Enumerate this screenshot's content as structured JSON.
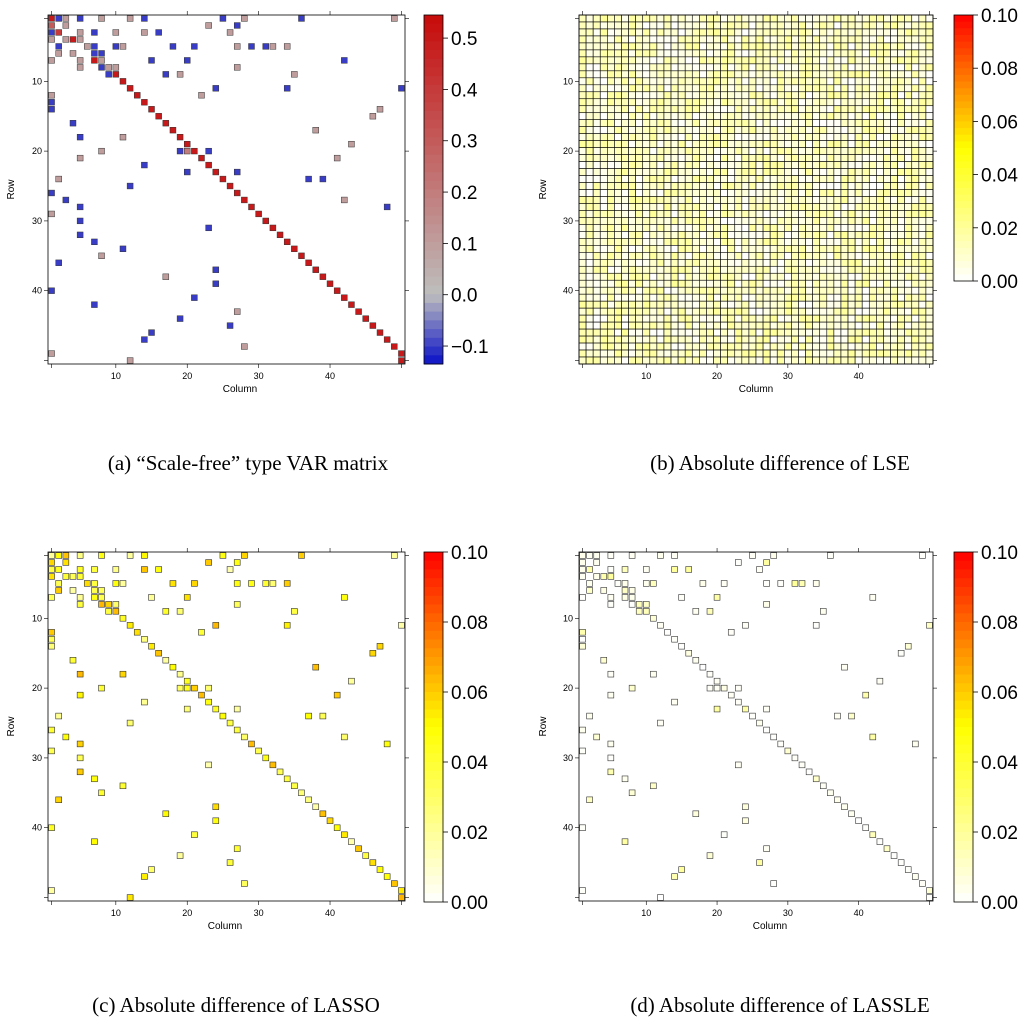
{
  "figure": {
    "panels": [
      {
        "id": "a",
        "caption": "(a) “Scale-free” type VAR matrix",
        "colorbar": {
          "type": "diverging",
          "ticks": [
            "0.5",
            "0.4",
            "0.3",
            "0.2",
            "0.1",
            "0.0",
            "−0.1"
          ],
          "tick_values": [
            0.5,
            0.4,
            0.3,
            0.2,
            0.1,
            0.0,
            -0.1
          ],
          "range": [
            -0.135,
            0.545
          ],
          "colors": {
            "negative": "#0a10c8",
            "zero": "#bebebe",
            "positive": "#c80a0a"
          }
        }
      },
      {
        "id": "b",
        "caption": "(b) Absolute difference of LSE",
        "colorbar": {
          "type": "heat",
          "ticks": [
            "0.10",
            "0.08",
            "0.06",
            "0.04",
            "0.02",
            "0.00"
          ],
          "tick_values": [
            0.1,
            0.08,
            0.06,
            0.04,
            0.02,
            0.0
          ],
          "range": [
            0,
            0.1
          ],
          "colors": {
            "low": "#ffffff",
            "mid": "#ffff00",
            "high": "#ff0000"
          }
        }
      },
      {
        "id": "c",
        "caption": "(c) Absolute difference of LASSO",
        "colorbar": {
          "type": "heat",
          "ticks": [
            "0.10",
            "0.08",
            "0.06",
            "0.04",
            "0.02",
            "0.00"
          ],
          "tick_values": [
            0.1,
            0.08,
            0.06,
            0.04,
            0.02,
            0.0
          ],
          "range": [
            0,
            0.1
          ],
          "colors": {
            "low": "#ffffff",
            "mid": "#ffff00",
            "high": "#ff0000"
          }
        }
      },
      {
        "id": "d",
        "caption": "(d) Absolute difference of LASSLE",
        "colorbar": {
          "type": "heat",
          "ticks": [
            "0.10",
            "0.08",
            "0.06",
            "0.04",
            "0.02",
            "0.00"
          ],
          "tick_values": [
            0.1,
            0.08,
            0.06,
            0.04,
            0.02,
            0.0
          ],
          "range": [
            0,
            0.1
          ],
          "colors": {
            "low": "#ffffff",
            "mid": "#ffff00",
            "high": "#ff0000"
          }
        }
      }
    ],
    "axes": {
      "xlabel": "Column",
      "ylabel": "Row",
      "xticks": [
        "10",
        "20",
        "30",
        "40"
      ],
      "yticks": [
        "10",
        "20",
        "30",
        "40"
      ],
      "n": 50
    }
  },
  "chart_data": [
    {
      "type": "heatmap",
      "panel": "a",
      "title": "",
      "xlabel": "Column",
      "ylabel": "Row",
      "rows": 50,
      "cols": 50,
      "diagonal_value": 0.5,
      "cells": [
        [
          1,
          1,
          0.5
        ],
        [
          1,
          2,
          -0.1
        ],
        [
          1,
          3,
          0.1
        ],
        [
          1,
          5,
          -0.1
        ],
        [
          1,
          8,
          0.1
        ],
        [
          1,
          12,
          0.1
        ],
        [
          1,
          14,
          -0.1
        ],
        [
          1,
          25,
          -0.1
        ],
        [
          1,
          28,
          0.1
        ],
        [
          1,
          36,
          -0.1
        ],
        [
          1,
          49,
          0.1
        ],
        [
          2,
          1,
          0.3
        ],
        [
          2,
          3,
          0.1
        ],
        [
          2,
          23,
          0.1
        ],
        [
          2,
          27,
          -0.1
        ],
        [
          3,
          1,
          -0.1
        ],
        [
          3,
          2,
          0.4
        ],
        [
          3,
          5,
          0.1
        ],
        [
          3,
          7,
          -0.1
        ],
        [
          3,
          10,
          0.1
        ],
        [
          3,
          14,
          0.1
        ],
        [
          3,
          16,
          -0.1
        ],
        [
          3,
          26,
          0.1
        ],
        [
          4,
          1,
          0.1
        ],
        [
          4,
          3,
          0.1
        ],
        [
          4,
          4,
          0.5
        ],
        [
          4,
          5,
          0.1
        ],
        [
          5,
          2,
          -0.1
        ],
        [
          5,
          6,
          0.1
        ],
        [
          5,
          7,
          -0.1
        ],
        [
          5,
          10,
          -0.1
        ],
        [
          5,
          11,
          0.1
        ],
        [
          5,
          18,
          -0.1
        ],
        [
          5,
          21,
          -0.1
        ],
        [
          5,
          27,
          0.1
        ],
        [
          5,
          29,
          -0.1
        ],
        [
          5,
          31,
          -0.1
        ],
        [
          5,
          32,
          0.1
        ],
        [
          5,
          34,
          0.1
        ],
        [
          6,
          2,
          0.1
        ],
        [
          6,
          4,
          0.1
        ],
        [
          6,
          7,
          -0.1
        ],
        [
          6,
          8,
          -0.1
        ],
        [
          7,
          1,
          0.1
        ],
        [
          7,
          5,
          0.1
        ],
        [
          7,
          7,
          0.5
        ],
        [
          7,
          8,
          0.1
        ],
        [
          7,
          15,
          -0.1
        ],
        [
          7,
          20,
          -0.1
        ],
        [
          7,
          42,
          -0.1
        ],
        [
          8,
          5,
          0.1
        ],
        [
          8,
          8,
          -0.1
        ],
        [
          8,
          9,
          0.1
        ],
        [
          8,
          10,
          0.1
        ],
        [
          8,
          27,
          0.1
        ],
        [
          9,
          9,
          -0.1
        ],
        [
          9,
          10,
          0.5
        ],
        [
          9,
          17,
          -0.1
        ],
        [
          9,
          19,
          0.1
        ],
        [
          9,
          35,
          0.1
        ],
        [
          10,
          11,
          0.5
        ],
        [
          11,
          12,
          0.5
        ],
        [
          11,
          24,
          -0.1
        ],
        [
          11,
          34,
          -0.1
        ],
        [
          11,
          50,
          -0.1
        ],
        [
          12,
          1,
          0.1
        ],
        [
          12,
          13,
          0.5
        ],
        [
          12,
          22,
          0.1
        ],
        [
          13,
          1,
          -0.1
        ],
        [
          13,
          14,
          0.5
        ],
        [
          14,
          1,
          -0.1
        ],
        [
          14,
          15,
          0.5
        ],
        [
          14,
          47,
          0.1
        ],
        [
          15,
          16,
          0.5
        ],
        [
          15,
          46,
          0.1
        ],
        [
          16,
          4,
          -0.1
        ],
        [
          16,
          17,
          0.5
        ],
        [
          17,
          18,
          0.5
        ],
        [
          17,
          38,
          0.1
        ],
        [
          18,
          5,
          -0.1
        ],
        [
          18,
          11,
          0.1
        ],
        [
          18,
          19,
          0.5
        ],
        [
          19,
          20,
          0.5
        ],
        [
          19,
          43,
          0.1
        ],
        [
          20,
          8,
          0.1
        ],
        [
          20,
          19,
          -0.1
        ],
        [
          20,
          20,
          0.2
        ],
        [
          20,
          21,
          0.5
        ],
        [
          20,
          23,
          -0.1
        ],
        [
          21,
          5,
          0.1
        ],
        [
          21,
          22,
          0.5
        ],
        [
          21,
          41,
          0.1
        ],
        [
          22,
          14,
          -0.1
        ],
        [
          22,
          23,
          0.5
        ],
        [
          23,
          20,
          -0.1
        ],
        [
          23,
          24,
          0.5
        ],
        [
          23,
          27,
          -0.1
        ],
        [
          24,
          2,
          0.1
        ],
        [
          24,
          25,
          0.5
        ],
        [
          24,
          37,
          -0.1
        ],
        [
          24,
          39,
          -0.1
        ],
        [
          25,
          12,
          -0.1
        ],
        [
          25,
          26,
          0.5
        ],
        [
          26,
          1,
          -0.1
        ],
        [
          26,
          27,
          0.5
        ],
        [
          27,
          3,
          -0.1
        ],
        [
          27,
          28,
          0.5
        ],
        [
          27,
          42,
          0.1
        ],
        [
          28,
          5,
          -0.1
        ],
        [
          28,
          29,
          0.5
        ],
        [
          28,
          48,
          -0.1
        ],
        [
          29,
          1,
          0.1
        ],
        [
          29,
          30,
          0.5
        ],
        [
          30,
          5,
          -0.1
        ],
        [
          30,
          31,
          0.5
        ],
        [
          31,
          23,
          -0.1
        ],
        [
          31,
          32,
          0.5
        ],
        [
          32,
          5,
          -0.1
        ],
        [
          32,
          33,
          0.5
        ],
        [
          33,
          7,
          -0.1
        ],
        [
          33,
          34,
          0.5
        ],
        [
          34,
          11,
          -0.1
        ],
        [
          34,
          35,
          0.5
        ],
        [
          35,
          8,
          0.1
        ],
        [
          35,
          36,
          0.5
        ],
        [
          36,
          2,
          -0.1
        ],
        [
          36,
          37,
          0.5
        ],
        [
          37,
          24,
          -0.1
        ],
        [
          37,
          38,
          0.5
        ],
        [
          38,
          17,
          0.1
        ],
        [
          38,
          39,
          0.5
        ],
        [
          39,
          24,
          -0.1
        ],
        [
          39,
          40,
          0.5
        ],
        [
          40,
          1,
          -0.1
        ],
        [
          40,
          41,
          0.5
        ],
        [
          41,
          21,
          -0.1
        ],
        [
          41,
          42,
          0.5
        ],
        [
          42,
          7,
          -0.1
        ],
        [
          42,
          43,
          0.5
        ],
        [
          43,
          27,
          0.1
        ],
        [
          43,
          44,
          0.5
        ],
        [
          44,
          19,
          -0.1
        ],
        [
          44,
          45,
          0.5
        ],
        [
          45,
          26,
          -0.1
        ],
        [
          45,
          46,
          0.5
        ],
        [
          46,
          15,
          -0.1
        ],
        [
          46,
          47,
          0.5
        ],
        [
          47,
          14,
          -0.1
        ],
        [
          47,
          48,
          0.5
        ],
        [
          48,
          28,
          0.1
        ],
        [
          48,
          49,
          0.5
        ],
        [
          49,
          1,
          0.1
        ],
        [
          49,
          50,
          0.5
        ],
        [
          50,
          12,
          0.1
        ],
        [
          50,
          50,
          0.5
        ]
      ]
    },
    {
      "type": "heatmap",
      "panel": "b",
      "title": "",
      "xlabel": "Column",
      "ylabel": "Row",
      "rows": 50,
      "cols": 50,
      "fill": "all cells",
      "value_range": [
        0.0,
        0.02
      ]
    },
    {
      "type": "heatmap",
      "panel": "c",
      "title": "",
      "xlabel": "Column",
      "ylabel": "Row",
      "rows": 50,
      "cols": 50,
      "fill": "nonzero cells of (a)",
      "value_range": [
        0.015,
        0.065
      ]
    },
    {
      "type": "heatmap",
      "panel": "d",
      "title": "",
      "xlabel": "Column",
      "ylabel": "Row",
      "rows": 50,
      "cols": 50,
      "fill": "nonzero cells of (a)",
      "value_range": [
        0.0,
        0.02
      ]
    }
  ]
}
